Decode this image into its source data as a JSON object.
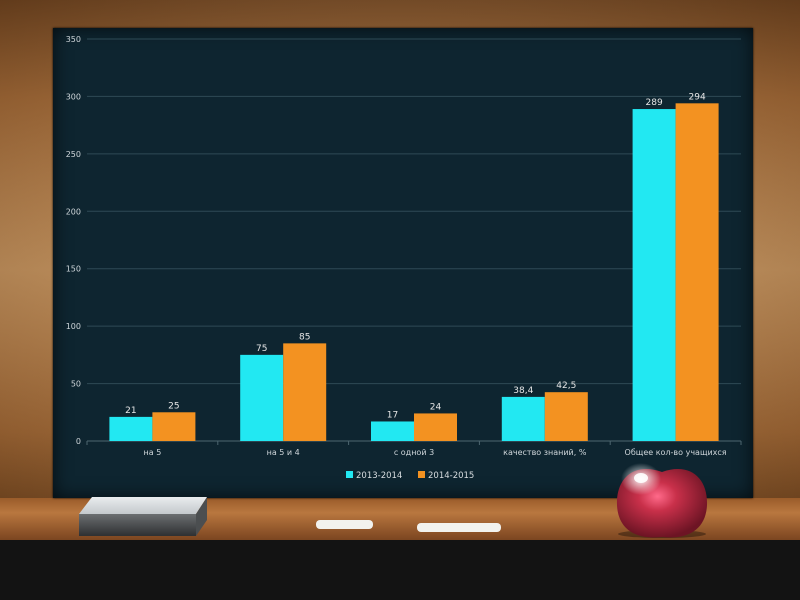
{
  "colors": {
    "series_2013": "#22e8f2",
    "series_2014": "#f39221",
    "board": "#0e2530",
    "gridline": "#2e4a55"
  },
  "chart_data": {
    "type": "bar",
    "categories": [
      "на 5",
      "на 5 и 4",
      "с одной 3",
      "качество знаний, %",
      "Общее кол-во учащихся"
    ],
    "series": [
      {
        "name": "2013-2014",
        "values": [
          21,
          75,
          17,
          38.4,
          289
        ]
      },
      {
        "name": "2014-2015",
        "values": [
          25,
          85,
          24,
          42.5,
          294
        ]
      }
    ],
    "data_labels": [
      [
        "21",
        "75",
        "17",
        "38,4",
        "289"
      ],
      [
        "25",
        "85",
        "24",
        "42,5",
        "294"
      ]
    ],
    "ylim": [
      0,
      350
    ],
    "yticks": [
      0,
      50,
      100,
      150,
      200,
      250,
      300,
      350
    ],
    "grid": true,
    "legend_position": "bottom"
  },
  "decor_icons": [
    "eraser-icon",
    "chalk-icon",
    "apple-icon"
  ]
}
